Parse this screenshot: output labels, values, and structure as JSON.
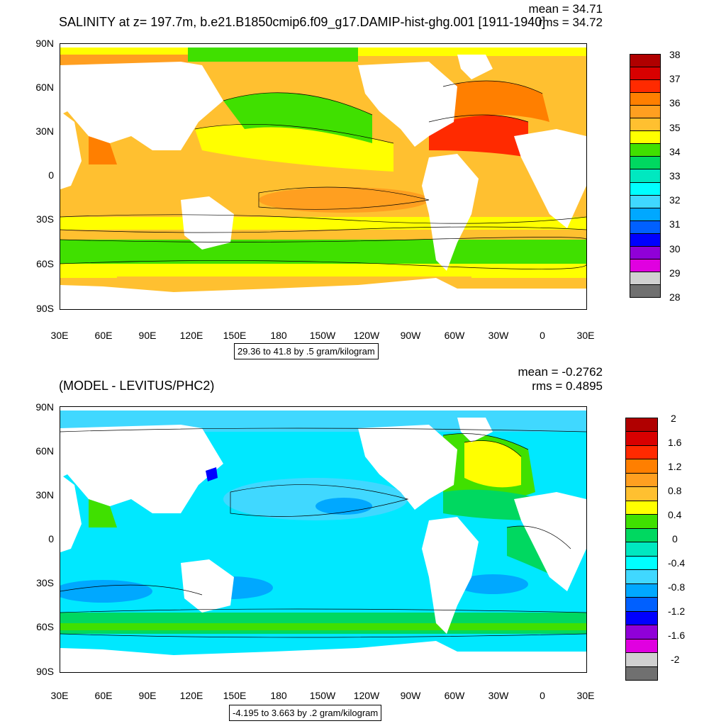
{
  "panel1": {
    "title": "SALINITY at z= 197.7m, b.e21.B1850cmip6.f09_g17.DAMIP-hist-ghg.001 [1911-1940]",
    "mean": "mean = 34.71",
    "rms": "rms = 34.72",
    "info": "29.36 to 41.8 by .5 gram/kilogram",
    "colorbar_labels": [
      "38",
      "37",
      "36",
      "35",
      "34",
      "33",
      "32",
      "31",
      "30",
      "29",
      "28"
    ],
    "colorbar_colors": [
      "#b00000",
      "#d80000",
      "#ff2a00",
      "#ff7f00",
      "#ff9f20",
      "#ffc030",
      "#ffff00",
      "#40e000",
      "#00d860",
      "#00e8c0",
      "#00ffff",
      "#40d8ff",
      "#00a8ff",
      "#0060ff",
      "#0000ff",
      "#9000d8",
      "#e000e0",
      "#d0d0d0",
      "#707070"
    ]
  },
  "panel2": {
    "title": "(MODEL - LEVITUS/PHC2)",
    "mean": "mean = -0.2762",
    "rms": "rms = 0.4895",
    "info": "-4.195 to 3.663 by .2 gram/kilogram",
    "colorbar_labels": [
      "2",
      "1.6",
      "1.2",
      "0.8",
      "0.4",
      "0",
      "-0.4",
      "-0.8",
      "-1.2",
      "-1.6",
      "-2"
    ],
    "colorbar_colors": [
      "#b00000",
      "#d80000",
      "#ff2a00",
      "#ff7f00",
      "#ff9f20",
      "#ffc030",
      "#ffff00",
      "#40e000",
      "#00d860",
      "#00e8c0",
      "#00ffff",
      "#40d8ff",
      "#00a8ff",
      "#0060ff",
      "#0000ff",
      "#9000d8",
      "#e000e0",
      "#d0d0d0",
      "#707070"
    ]
  },
  "axes": {
    "lat_labels": [
      "90N",
      "60N",
      "30N",
      "0",
      "30S",
      "60S",
      "90S"
    ],
    "lon_labels": [
      "30E",
      "60E",
      "90E",
      "120E",
      "150E",
      "180",
      "150W",
      "120W",
      "90W",
      "60W",
      "30W",
      "0",
      "30E"
    ]
  }
}
